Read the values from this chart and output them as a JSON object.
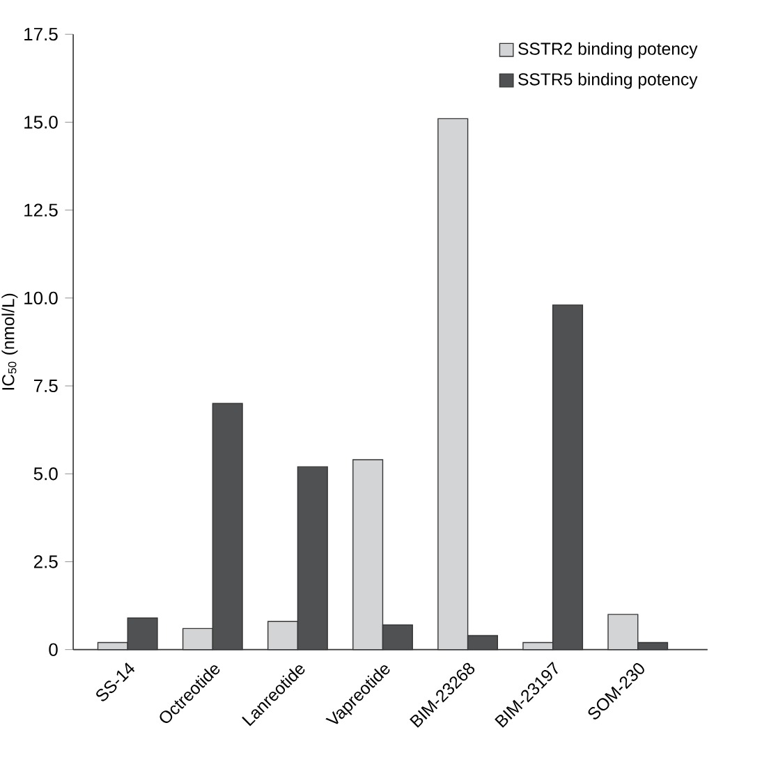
{
  "chart_data": {
    "type": "bar",
    "ylabel": "IC$_{50}$ (nmol/L)",
    "categories": [
      "SS-14",
      "Octreotide",
      "Lanreotide",
      "Vapreotide",
      "BIM-23268",
      "BIM-23197",
      "SOM-230"
    ],
    "series": [
      {
        "name": "SSTR2 binding potency",
        "color": "#d3d4d6",
        "values": [
          0.2,
          0.6,
          0.8,
          5.4,
          15.1,
          0.2,
          1.0
        ]
      },
      {
        "name": "SSTR5 binding potency",
        "color": "#505153",
        "values": [
          0.9,
          7.0,
          5.2,
          0.7,
          0.4,
          9.8,
          0.2
        ]
      }
    ],
    "ylim": [
      0,
      17.5
    ],
    "yticks": [
      0,
      2.5,
      {
        "value": 5,
        "label": "5.0"
      },
      7.5,
      {
        "value": 10,
        "label": "10.0"
      },
      12.5,
      {
        "value": 15,
        "label": "15.0"
      },
      17.5
    ],
    "grid": false,
    "legend": "top right"
  }
}
